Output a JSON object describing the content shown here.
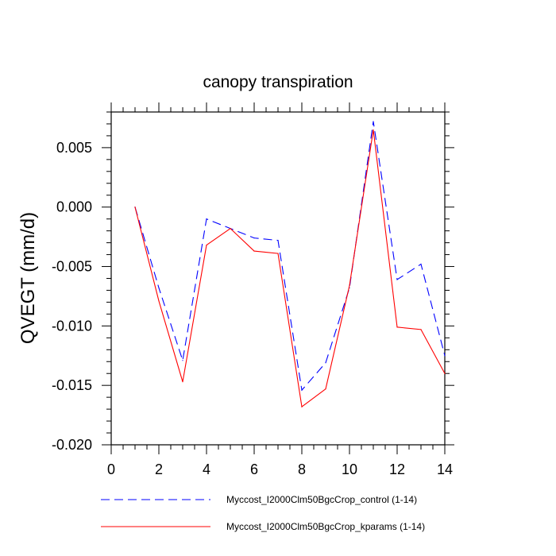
{
  "chart_data": {
    "type": "line",
    "title": "canopy transpiration",
    "xlabel": "",
    "ylabel": "QVEGT  (mm/d)",
    "xlim": [
      0,
      14
    ],
    "ylim": [
      -0.02,
      0.008
    ],
    "x_ticks": [
      0,
      2,
      4,
      6,
      8,
      10,
      12,
      14
    ],
    "x_tick_labels": [
      "0",
      "2",
      "4",
      "6",
      "8",
      "10",
      "12",
      "14"
    ],
    "y_ticks": [
      0.005,
      0.0,
      -0.005,
      -0.01,
      -0.015,
      -0.02
    ],
    "y_tick_labels": [
      "0.005",
      "0.000",
      "-0.005",
      "-0.010",
      "-0.015",
      "-0.020"
    ],
    "grid": false,
    "legend_position": "bottom",
    "x": [
      1,
      2,
      3,
      4,
      5,
      6,
      7,
      8,
      9,
      10,
      11,
      12,
      13,
      14
    ],
    "series": [
      {
        "name": "Myccost_I2000Clm50BgcCrop_control (1-14)",
        "color": "#0000ff",
        "dash": "dashed",
        "values": [
          0.0,
          -0.0068,
          -0.0129,
          -0.001,
          -0.0018,
          -0.0026,
          -0.0028,
          -0.0154,
          -0.0131,
          -0.0068,
          0.0072,
          -0.0061,
          -0.0048,
          -0.0125
        ]
      },
      {
        "name": "Myccost_I2000Clm50BgcCrop_kparams (1-14)",
        "color": "#ff0000",
        "dash": "solid",
        "values": [
          0.0,
          -0.0079,
          -0.0147,
          -0.0032,
          -0.0018,
          -0.0037,
          -0.0039,
          -0.0168,
          -0.0153,
          -0.0066,
          0.0065,
          -0.0101,
          -0.0103,
          -0.014
        ]
      }
    ]
  }
}
